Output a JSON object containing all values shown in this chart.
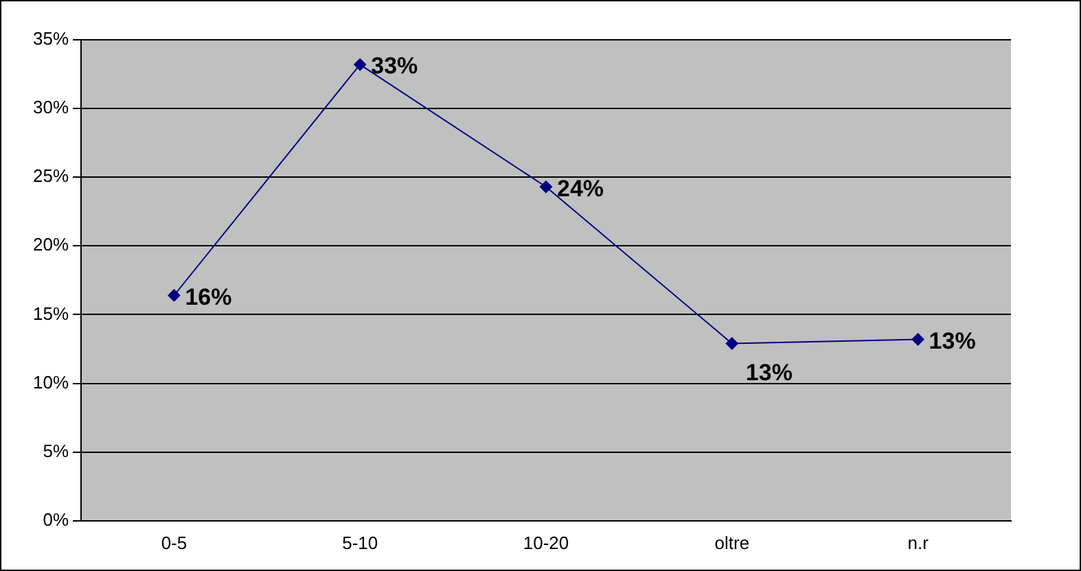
{
  "chart_data": {
    "type": "line",
    "categories": [
      "0-5",
      "5-10",
      "10-20",
      "oltre",
      "n.r"
    ],
    "series": [
      {
        "color": "#000080",
        "values": [
          16.4,
          33.2,
          24.3,
          12.9,
          13.2
        ],
        "value_labels": [
          "16%",
          "33%",
          "24%",
          "13%",
          "13%"
        ]
      }
    ],
    "ylim": [
      0,
      35
    ],
    "yticks": [
      {
        "value": 0,
        "label": "0%"
      },
      {
        "value": 5,
        "label": "5%"
      },
      {
        "value": 10,
        "label": "10%"
      },
      {
        "value": 15,
        "label": "15%"
      },
      {
        "value": 20,
        "label": "20%"
      },
      {
        "value": 25,
        "label": "25%"
      },
      {
        "value": 30,
        "label": "30%"
      },
      {
        "value": 35,
        "label": "35%"
      }
    ],
    "grid": "y",
    "legend": false,
    "marker": "diamond",
    "line_style": "solid"
  }
}
